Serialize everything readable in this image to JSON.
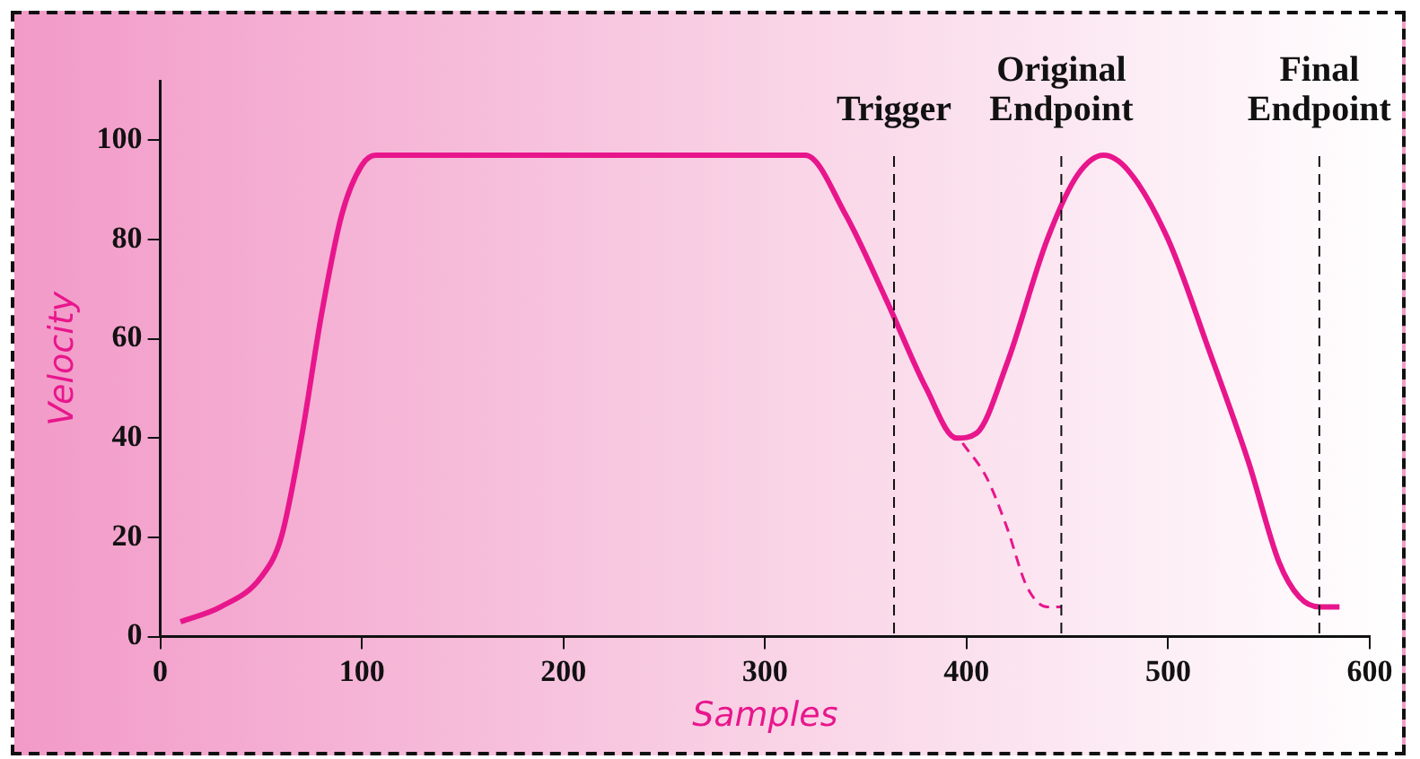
{
  "chart_data": {
    "type": "line",
    "xlabel": "Samples",
    "ylabel": "Velocity",
    "xlim": [
      0,
      600
    ],
    "xticks": [
      0,
      100,
      200,
      300,
      400,
      500,
      600
    ],
    "ylim": [
      0,
      112
    ],
    "yticks": [
      0,
      20,
      40,
      60,
      80,
      100
    ],
    "series": [
      {
        "color": "#e8168c",
        "line_style": "solid",
        "x": [
          10,
          30,
          50,
          60,
          70,
          80,
          90,
          100,
          107,
          320,
          340,
          360,
          380,
          395,
          405,
          420,
          440,
          455,
          468,
          480,
          500,
          520,
          540,
          555,
          565,
          575,
          585
        ],
        "values": [
          3,
          6,
          12,
          20,
          40,
          65,
          85,
          95,
          97,
          97,
          85,
          68,
          50,
          40,
          41,
          55,
          80,
          93,
          97,
          94,
          80,
          58,
          35,
          15,
          8,
          6,
          6
        ]
      },
      {
        "color": "#e8168c",
        "line_style": "dashed",
        "x": [
          398,
          410,
          420,
          430,
          440,
          447
        ],
        "values": [
          39,
          32,
          22,
          10,
          6,
          6
        ]
      }
    ],
    "ref_lines": [
      {
        "axis": "x",
        "value": 364,
        "label": "Trigger"
      },
      {
        "axis": "x",
        "value": 447,
        "label": "Original Endpoint"
      },
      {
        "axis": "x",
        "value": 575,
        "label": "Final Endpoint"
      }
    ],
    "grid": false,
    "legend": false,
    "marker": "none"
  }
}
